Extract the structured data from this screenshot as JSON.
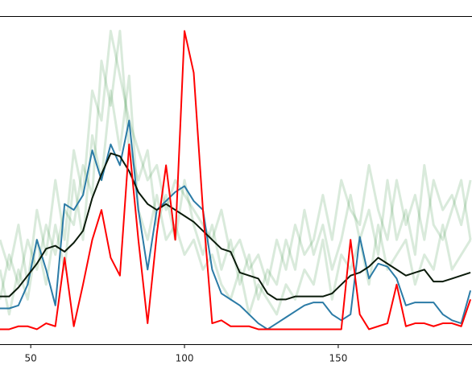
{
  "chart_data": {
    "type": "line",
    "x": [
      40,
      43,
      46,
      49,
      52,
      55,
      58,
      61,
      64,
      67,
      70,
      73,
      76,
      79,
      82,
      85,
      88,
      91,
      94,
      97,
      100,
      103,
      106,
      109,
      112,
      115,
      118,
      121,
      124,
      127,
      130,
      133,
      136,
      139,
      142,
      145,
      148,
      151,
      154,
      157,
      160,
      163,
      166,
      169,
      172,
      175,
      178,
      181,
      184,
      187,
      190,
      193
    ],
    "xlim": [
      40,
      193.5
    ],
    "xticks": [
      50,
      100,
      150
    ],
    "ylim": [
      -0.05,
      1.05
    ],
    "series": [
      {
        "color": "#2e8b3a",
        "opacity": 0.18,
        "values": [
          0.3,
          0.2,
          0.35,
          0.15,
          0.4,
          0.25,
          0.5,
          0.3,
          0.6,
          0.45,
          0.8,
          0.7,
          1.0,
          0.85,
          0.7,
          0.6,
          0.5,
          0.55,
          0.4,
          0.5,
          0.45,
          0.4,
          0.35,
          0.3,
          0.4,
          0.25,
          0.3,
          0.2,
          0.25,
          0.15,
          0.3,
          0.2,
          0.35,
          0.25,
          0.3,
          0.45,
          0.3,
          0.5,
          0.4,
          0.35,
          0.55,
          0.4,
          0.3,
          0.5,
          0.35,
          0.45,
          0.3,
          0.5,
          0.4,
          0.45,
          0.35,
          0.5
        ]
      },
      {
        "color": "#2e8b3a",
        "opacity": 0.18,
        "values": [
          0.1,
          0.25,
          0.15,
          0.3,
          0.2,
          0.35,
          0.25,
          0.4,
          0.35,
          0.55,
          0.45,
          0.9,
          0.75,
          1.0,
          0.6,
          0.5,
          0.6,
          0.35,
          0.45,
          0.3,
          0.5,
          0.35,
          0.25,
          0.35,
          0.2,
          0.3,
          0.15,
          0.25,
          0.1,
          0.2,
          0.15,
          0.3,
          0.2,
          0.4,
          0.25,
          0.35,
          0.2,
          0.3,
          0.45,
          0.3,
          0.4,
          0.25,
          0.5,
          0.3,
          0.4,
          0.25,
          0.55,
          0.35,
          0.3,
          0.4,
          0.5,
          0.3
        ]
      },
      {
        "color": "#2e8b3a",
        "opacity": 0.18,
        "values": [
          0.2,
          0.05,
          0.2,
          0.1,
          0.3,
          0.15,
          0.35,
          0.2,
          0.5,
          0.3,
          0.65,
          0.5,
          0.8,
          0.6,
          0.85,
          0.4,
          0.3,
          0.45,
          0.3,
          0.35,
          0.25,
          0.3,
          0.2,
          0.25,
          0.15,
          0.1,
          0.2,
          0.05,
          0.15,
          0.1,
          0.05,
          0.15,
          0.1,
          0.2,
          0.15,
          0.3,
          0.1,
          0.25,
          0.2,
          0.3,
          0.15,
          0.35,
          0.2,
          0.25,
          0.3,
          0.15,
          0.25,
          0.2,
          0.35,
          0.2,
          0.25,
          0.3
        ]
      },
      {
        "color": "#2b7ba6",
        "opacity": 1,
        "values": [
          0.07,
          0.07,
          0.08,
          0.15,
          0.3,
          0.2,
          0.08,
          0.42,
          0.4,
          0.45,
          0.6,
          0.5,
          0.62,
          0.55,
          0.7,
          0.4,
          0.2,
          0.4,
          0.43,
          0.46,
          0.48,
          0.43,
          0.4,
          0.2,
          0.12,
          0.1,
          0.08,
          0.05,
          0.02,
          0,
          0.02,
          0.04,
          0.06,
          0.08,
          0.09,
          0.09,
          0.05,
          0.03,
          0.05,
          0.31,
          0.17,
          0.22,
          0.21,
          0.17,
          0.08,
          0.09,
          0.09,
          0.09,
          0.05,
          0.03,
          0.02,
          0.13
        ]
      },
      {
        "color": "#0a1a0a",
        "opacity": 1,
        "values": [
          0.11,
          0.11,
          0.14,
          0.18,
          0.22,
          0.27,
          0.28,
          0.26,
          0.29,
          0.33,
          0.44,
          0.52,
          0.59,
          0.58,
          0.53,
          0.46,
          0.42,
          0.4,
          0.42,
          0.4,
          0.38,
          0.36,
          0.33,
          0.3,
          0.27,
          0.26,
          0.19,
          0.18,
          0.17,
          0.12,
          0.1,
          0.1,
          0.11,
          0.11,
          0.11,
          0.11,
          0.12,
          0.15,
          0.18,
          0.19,
          0.21,
          0.24,
          0.22,
          0.2,
          0.18,
          0.19,
          0.2,
          0.16,
          0.16,
          0.17,
          0.18,
          0.19
        ]
      },
      {
        "color": "#ff0000",
        "opacity": 1,
        "values": [
          0,
          0,
          0.01,
          0.01,
          0,
          0.02,
          0.01,
          0.24,
          0.01,
          0.15,
          0.3,
          0.4,
          0.24,
          0.18,
          0.62,
          0.3,
          0.02,
          0.32,
          0.55,
          0.3,
          1.0,
          0.86,
          0.4,
          0.02,
          0.03,
          0.01,
          0.01,
          0.01,
          0,
          0,
          0,
          0,
          0,
          0,
          0,
          0,
          0,
          0,
          0.3,
          0.05,
          0,
          0.01,
          0.02,
          0.15,
          0.01,
          0.02,
          0.02,
          0.01,
          0.02,
          0.02,
          0.01,
          0.1
        ]
      }
    ]
  }
}
